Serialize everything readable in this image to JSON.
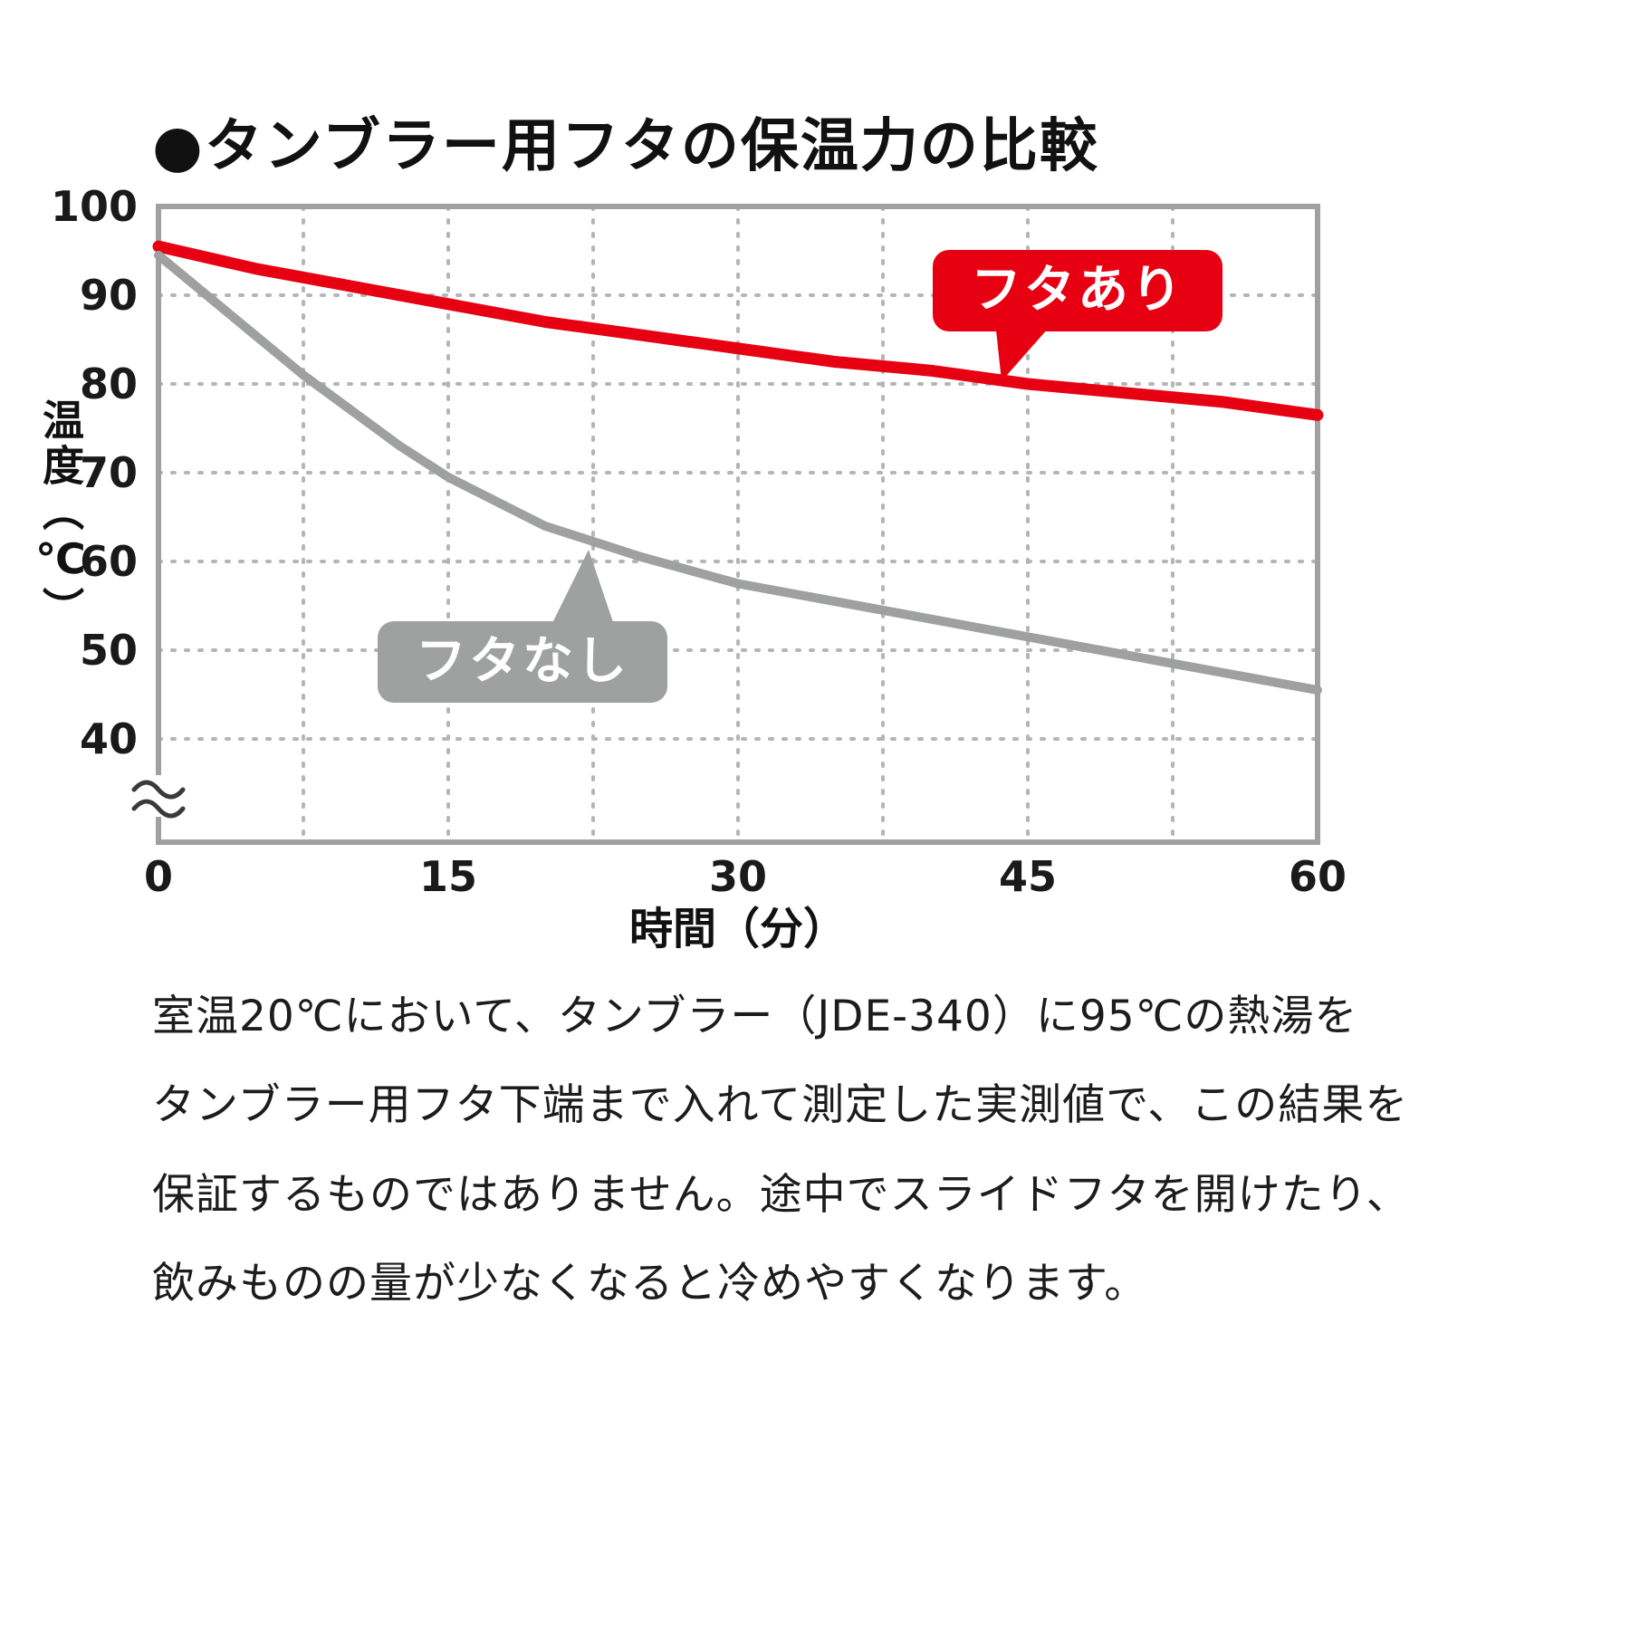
{
  "title": "●タンブラー用フタの保温力の比較",
  "colors": {
    "accent_red": "#e60012",
    "line_gray": "#9fa0a0",
    "border": "#9fa0a0",
    "grid": "#b5b5b6",
    "text": "#1a1a1a",
    "axis_break": "#3a3a3a"
  },
  "chart_data": {
    "type": "line",
    "title": "タンブラー用フタの保温力の比較",
    "xlabel": "時間（分）",
    "ylabel": "温度（℃）",
    "xlim": [
      0,
      60
    ],
    "ylim": [
      40,
      100
    ],
    "axis_break_below_y": 40,
    "x_ticks": [
      0,
      15,
      30,
      45,
      60
    ],
    "y_ticks": [
      100,
      90,
      80,
      70,
      60,
      50,
      40
    ],
    "grid": "dotted",
    "legend_position": "callouts-on-lines",
    "series": [
      {
        "name": "フタあり",
        "color": "#e60012",
        "x": [
          0,
          5,
          10,
          15,
          20,
          25,
          30,
          35,
          40,
          45,
          50,
          55,
          60
        ],
        "values": [
          95.5,
          93,
          91,
          89,
          87,
          85.5,
          84,
          82.5,
          81.5,
          80,
          79,
          78,
          76.5
        ]
      },
      {
        "name": "フタなし",
        "color": "#9fa0a0",
        "x": [
          0,
          2.5,
          5,
          7.5,
          10,
          12.5,
          15,
          20,
          25,
          30,
          35,
          40,
          45,
          50,
          55,
          60
        ],
        "values": [
          94.5,
          90,
          85.5,
          81,
          77,
          73,
          69.5,
          64,
          60.5,
          57.5,
          55.5,
          53.5,
          51.5,
          49.5,
          47.5,
          45.5
        ]
      }
    ]
  },
  "footnote_lines": [
    "室温20℃において、タンブラー（JDE-340）に95℃の熱湯を",
    "タンブラー用フタ下端まで入れて測定した実測値で、この結果を",
    "保証するものではありません。途中でスライドフタを開けたり、",
    "飲みものの量が少なくなると冷めやすくなります。"
  ]
}
